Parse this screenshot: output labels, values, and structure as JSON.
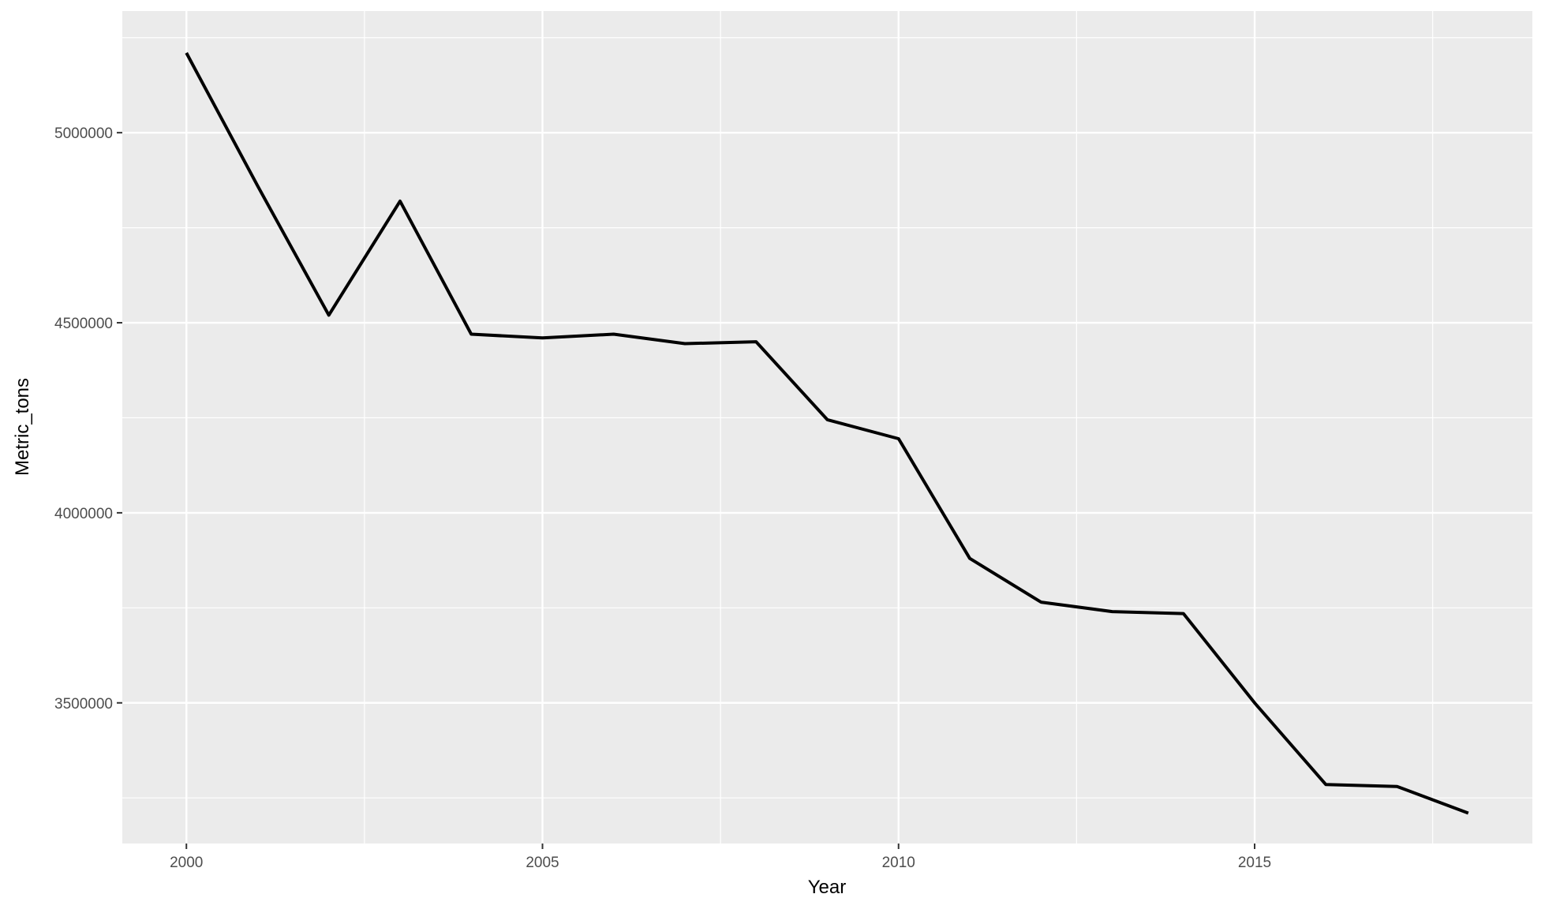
{
  "chart_data": {
    "type": "line",
    "title": "",
    "xlabel": "Year",
    "ylabel": "Metric_tons",
    "x": [
      2000,
      2001,
      2002,
      2003,
      2004,
      2005,
      2006,
      2007,
      2008,
      2009,
      2010,
      2011,
      2012,
      2013,
      2014,
      2015,
      2016,
      2017,
      2018
    ],
    "series": [
      {
        "values": [
          5210000,
          4860000,
          4520000,
          4820000,
          4470000,
          4460000,
          4470000,
          4445000,
          4450000,
          4245000,
          4195000,
          3880000,
          3765000,
          3740000,
          3735000,
          3500000,
          3285000,
          3280000,
          3210000
        ]
      }
    ],
    "xlim": [
      1999.1,
      2018.9
    ],
    "ylim": [
      3130000,
      5320000
    ],
    "xticks": [
      2000,
      2005,
      2010,
      2015
    ],
    "xtick_labels": [
      "2000",
      "2005",
      "2010",
      "2015"
    ],
    "yticks": [
      3500000,
      4000000,
      4500000,
      5000000
    ],
    "ytick_labels": [
      "3500000",
      "4000000",
      "4500000",
      "5000000"
    ],
    "grid": true,
    "legend": "none",
    "colors": {
      "panel_background": "#ebebeb",
      "grid": "#ffffff",
      "line": "#000000",
      "tick_text": "#4d4d4d"
    }
  }
}
